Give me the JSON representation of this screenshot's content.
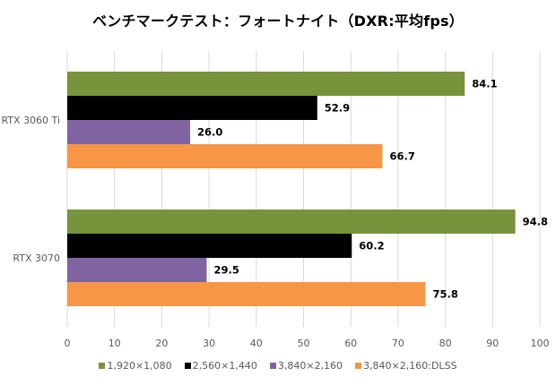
{
  "chart_data": {
    "type": "bar",
    "orientation": "horizontal",
    "title": "ベンチマークテスト：フォートナイト（DXR:平均fps）",
    "xlabel": "",
    "ylabel": "",
    "xlim": [
      0,
      100
    ],
    "xticks": [
      0,
      10,
      20,
      30,
      40,
      50,
      60,
      70,
      80,
      90,
      100
    ],
    "grid": true,
    "legend_position": "bottom",
    "categories": [
      "RTX 3060 Ti",
      "RTX 3070"
    ],
    "series": [
      {
        "name": "1,920×1,080",
        "color": "#77933c",
        "values": [
          84.1,
          94.8
        ],
        "labels": [
          "84.1",
          "94.8"
        ]
      },
      {
        "name": "2,560×1,440",
        "color": "#000000",
        "values": [
          52.9,
          60.2
        ],
        "labels": [
          "52.9",
          "60.2"
        ]
      },
      {
        "name": "3,840×2,160",
        "color": "#8064a2",
        "values": [
          26.0,
          29.5
        ],
        "labels": [
          "26.0",
          "29.5"
        ]
      },
      {
        "name": "3,840×2,160:DLSS",
        "color": "#f79646",
        "values": [
          66.7,
          75.8
        ],
        "labels": [
          "66.7",
          "75.8"
        ]
      }
    ]
  }
}
